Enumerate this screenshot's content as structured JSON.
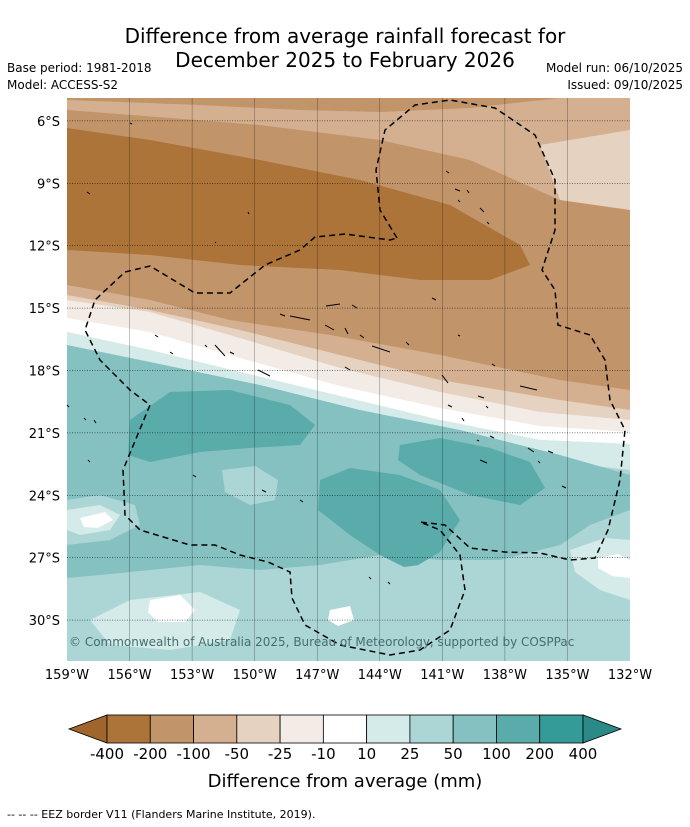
{
  "header": {
    "title_line1": "Difference from average rainfall forecast for",
    "title_line2": "December 2025 to February 2026",
    "base_period": "Base period: 1981-2018",
    "model": "Model: ACCESS-S2",
    "model_run": "Model run: 06/10/2025",
    "issued": "Issued: 09/10/2025"
  },
  "map": {
    "lat_labels": [
      "6°S",
      "9°S",
      "12°S",
      "15°S",
      "18°S",
      "21°S",
      "24°S",
      "27°S",
      "30°S"
    ],
    "lon_labels": [
      "159°W",
      "156°W",
      "153°W",
      "150°W",
      "147°W",
      "144°W",
      "141°W",
      "138°W",
      "135°W",
      "132°W"
    ],
    "copyright": "© Commonwealth of Australia 2025, Bureau of Meteorology, supported by COSPPac",
    "fill_colors": {
      "strong_dry": "#ad743a",
      "dry": "#c2946a",
      "mild_dry": "#d4b090",
      "slight_dry": "#e6d2c0",
      "near_zero": "#f3ece6",
      "white": "#ffffff",
      "slight_wet": "#d4ebea",
      "mild_wet": "#acd6d5",
      "wet": "#84c1c0",
      "strong_wet": "#5aacab"
    }
  },
  "colorbar": {
    "labels": [
      "-400",
      "-200",
      "-100",
      "-50",
      "-25",
      "-10",
      "10",
      "25",
      "50",
      "100",
      "200",
      "400"
    ],
    "colors": [
      "#ad743a",
      "#c2946a",
      "#d4b090",
      "#e6d2c0",
      "#f3ece6",
      "#ffffff",
      "#d4ebea",
      "#acd6d5",
      "#84c1c0",
      "#5aacab",
      "#349b98"
    ],
    "low_extend_color": "#a0652c",
    "high_extend_color": "#2a8a87",
    "title": "Difference from average (mm)"
  },
  "footnote": "-- -- -- EEZ border V11 (Flanders Marine Institute, 2019)."
}
